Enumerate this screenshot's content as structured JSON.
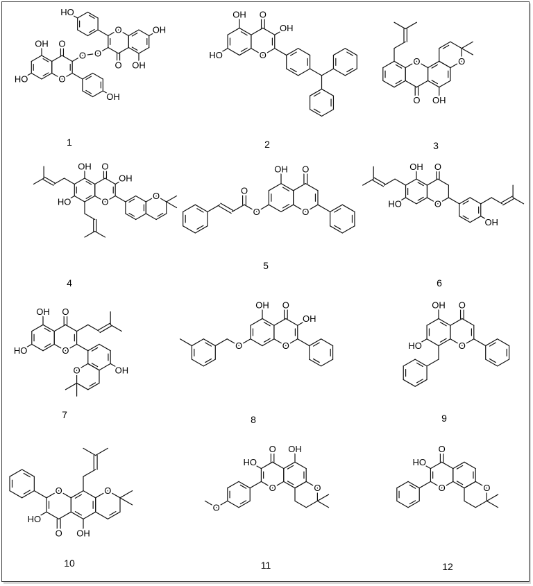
{
  "figure": {
    "compounds": [
      {
        "number": "1",
        "atoms": [
          "OH",
          "HO",
          "O",
          "O",
          "O",
          "OH",
          "O",
          "O",
          "O",
          "OH",
          "OH",
          "HO"
        ]
      },
      {
        "number": "2",
        "atoms": [
          "OH",
          "O",
          "OH",
          "HO",
          "O"
        ]
      },
      {
        "number": "3",
        "atoms": [
          "O",
          "O",
          "O",
          "OH"
        ]
      },
      {
        "number": "4",
        "atoms": [
          "OH",
          "O",
          "OH",
          "HO",
          "O",
          "O"
        ]
      },
      {
        "number": "5",
        "atoms": [
          "OH",
          "O",
          "O",
          "O",
          "O"
        ]
      },
      {
        "number": "6",
        "atoms": [
          "OH",
          "O",
          "HO",
          "O",
          "OH"
        ]
      },
      {
        "number": "7",
        "atoms": [
          "OH",
          "O",
          "HO",
          "O",
          "OH",
          "O"
        ]
      },
      {
        "number": "8",
        "atoms": [
          "OH",
          "O",
          "OH",
          "O",
          "O"
        ]
      },
      {
        "number": "9",
        "atoms": [
          "OH",
          "O",
          "HO",
          "O"
        ]
      },
      {
        "number": "10",
        "atoms": [
          "O",
          "HO",
          "O",
          "OH",
          "O"
        ]
      },
      {
        "number": "11",
        "atoms": [
          "HO",
          "O",
          "OH",
          "O",
          "O",
          "O"
        ]
      },
      {
        "number": "12",
        "atoms": [
          "HO",
          "O",
          "O",
          "O"
        ]
      }
    ]
  }
}
